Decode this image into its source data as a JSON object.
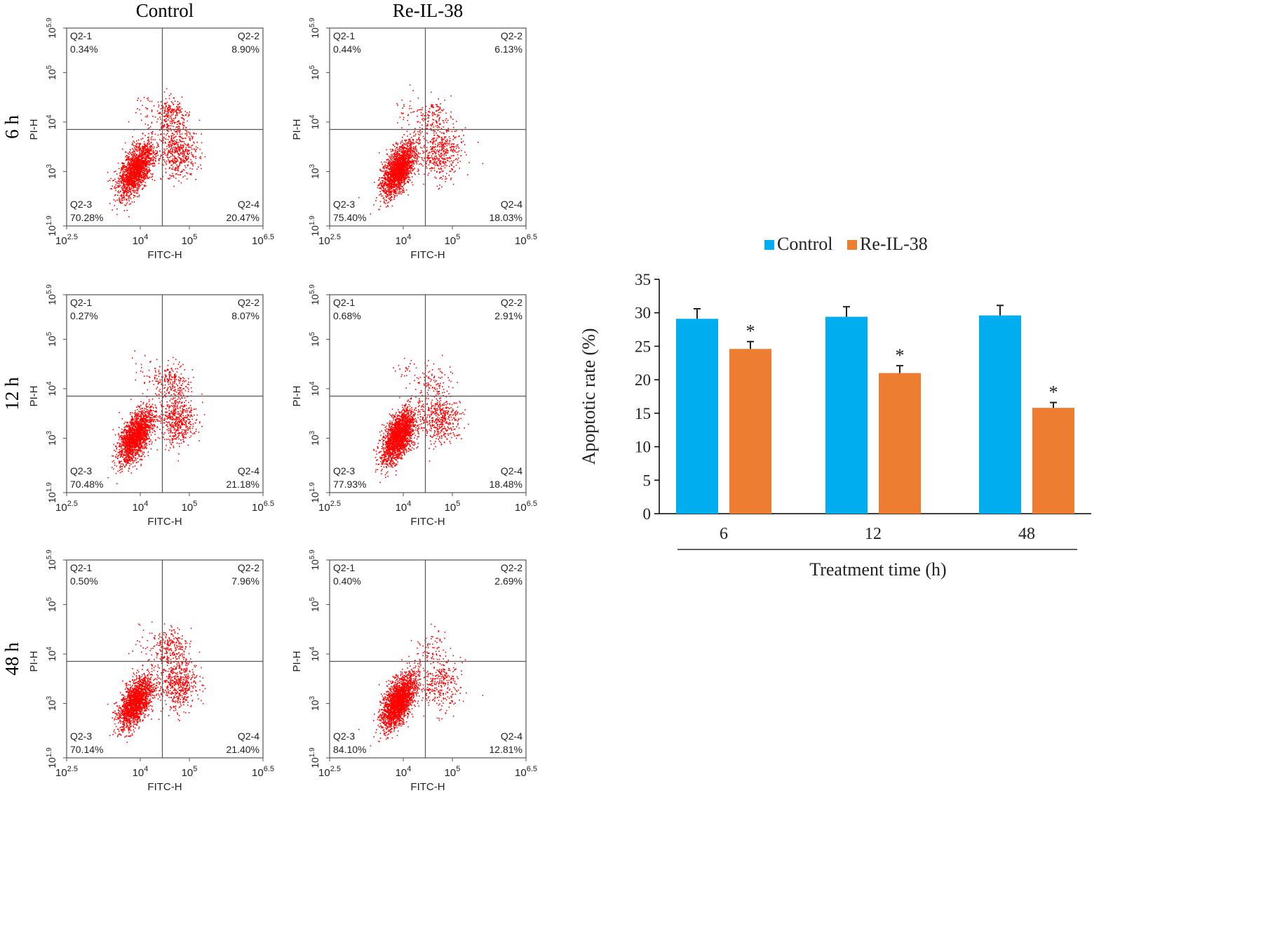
{
  "chart_data": [
    {
      "type": "scatter",
      "description": "Flow cytometry Annexin V-FITC / PI dot plots",
      "column_titles": [
        "Control",
        "Re-IL-38"
      ],
      "row_titles": [
        "6 h",
        "12 h",
        "48 h"
      ],
      "xlabel": "FITC-H",
      "ylabel": "PI-H",
      "x_ticks": [
        {
          "base": "10",
          "exp": "2.5"
        },
        {
          "base": "10",
          "exp": "4"
        },
        {
          "base": "10",
          "exp": "5"
        },
        {
          "base": "10",
          "exp": "6.5"
        }
      ],
      "y_ticks": [
        {
          "base": "10",
          "exp": "1.9"
        },
        {
          "base": "10",
          "exp": "3"
        },
        {
          "base": "10",
          "exp": "4"
        },
        {
          "base": "10",
          "exp": "5"
        },
        {
          "base": "10",
          "exp": "5.9"
        }
      ],
      "quadrant_names": [
        "Q2-1",
        "Q2-2",
        "Q2-3",
        "Q2-4"
      ],
      "panels": [
        {
          "row": 0,
          "col": 0,
          "q1": "0.34%",
          "q2": "8.90%",
          "q3": "70.28%",
          "q4": "20.47%"
        },
        {
          "row": 0,
          "col": 1,
          "q1": "0.44%",
          "q2": "6.13%",
          "q3": "75.40%",
          "q4": "18.03%"
        },
        {
          "row": 1,
          "col": 0,
          "q1": "0.27%",
          "q2": "8.07%",
          "q3": "70.48%",
          "q4": "21.18%"
        },
        {
          "row": 1,
          "col": 1,
          "q1": "0.68%",
          "q2": "2.91%",
          "q3": "77.93%",
          "q4": "18.48%"
        },
        {
          "row": 2,
          "col": 0,
          "q1": "0.50%",
          "q2": "7.96%",
          "q3": "70.14%",
          "q4": "21.40%"
        },
        {
          "row": 2,
          "col": 1,
          "q1": "0.40%",
          "q2": "2.69%",
          "q3": "84.10%",
          "q4": "12.81%"
        }
      ],
      "dot_color": "#ff0000"
    },
    {
      "type": "bar",
      "title": "",
      "categories": [
        "6",
        "12",
        "48"
      ],
      "series": [
        {
          "name": "Control",
          "values": [
            29.1,
            29.4,
            29.6
          ],
          "errors": [
            1.5,
            1.5,
            1.5
          ],
          "color": "#00aeef"
        },
        {
          "name": "Re-IL-38",
          "values": [
            24.6,
            21.0,
            15.8
          ],
          "errors": [
            1.1,
            1.1,
            0.8
          ],
          "color": "#ed7d31"
        }
      ],
      "significance": [
        "",
        "*"
      ],
      "xlabel": "Treatment time (h)",
      "ylabel": "Apoptotic rate (%)",
      "ylim": [
        0,
        35
      ],
      "yticks": [
        "0",
        "5",
        "10",
        "15",
        "20",
        "25",
        "30",
        "35"
      ],
      "grid": false,
      "legend_position": "top"
    }
  ]
}
